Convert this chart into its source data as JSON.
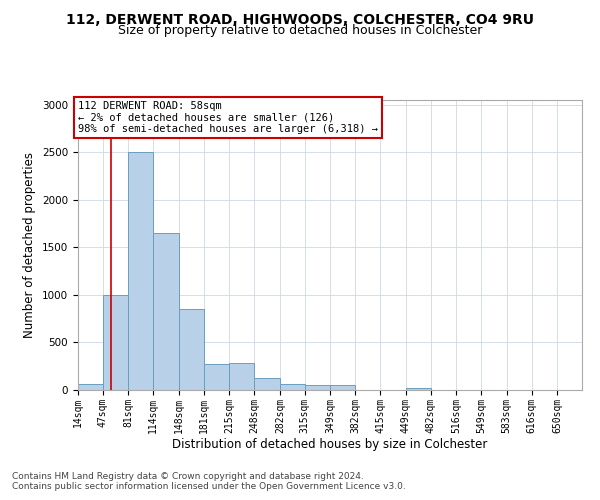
{
  "title_line1": "112, DERWENT ROAD, HIGHWOODS, COLCHESTER, CO4 9RU",
  "title_line2": "Size of property relative to detached houses in Colchester",
  "xlabel": "Distribution of detached houses by size in Colchester",
  "ylabel": "Number of detached properties",
  "footer_line1": "Contains HM Land Registry data © Crown copyright and database right 2024.",
  "footer_line2": "Contains public sector information licensed under the Open Government Licence v3.0.",
  "annotation_line1": "112 DERWENT ROAD: 58sqm",
  "annotation_line2": "← 2% of detached houses are smaller (126)",
  "annotation_line3": "98% of semi-detached houses are larger (6,318) →",
  "bar_edges": [
    14,
    47,
    81,
    114,
    148,
    181,
    215,
    248,
    282,
    315,
    349,
    382,
    415,
    449,
    482,
    516,
    549,
    583,
    616,
    650,
    683
  ],
  "bar_heights": [
    60,
    1000,
    2500,
    1650,
    850,
    275,
    280,
    130,
    60,
    55,
    55,
    0,
    0,
    25,
    0,
    0,
    0,
    0,
    0,
    0
  ],
  "bar_color": "#b8d0e8",
  "bar_edge_color": "#6a9fc0",
  "red_line_x": 58,
  "ylim": [
    0,
    3050
  ],
  "yticks": [
    0,
    500,
    1000,
    1500,
    2000,
    2500,
    3000
  ],
  "grid_color": "#d0d8e8",
  "background_color": "#ffffff",
  "annotation_box_color": "#ffffff",
  "annotation_box_edge_color": "#cc0000",
  "red_line_color": "#cc0000",
  "title_fontsize": 10,
  "subtitle_fontsize": 9,
  "tick_label_fontsize": 7,
  "axis_label_fontsize": 8.5,
  "annotation_fontsize": 7.5,
  "footer_fontsize": 6.5
}
